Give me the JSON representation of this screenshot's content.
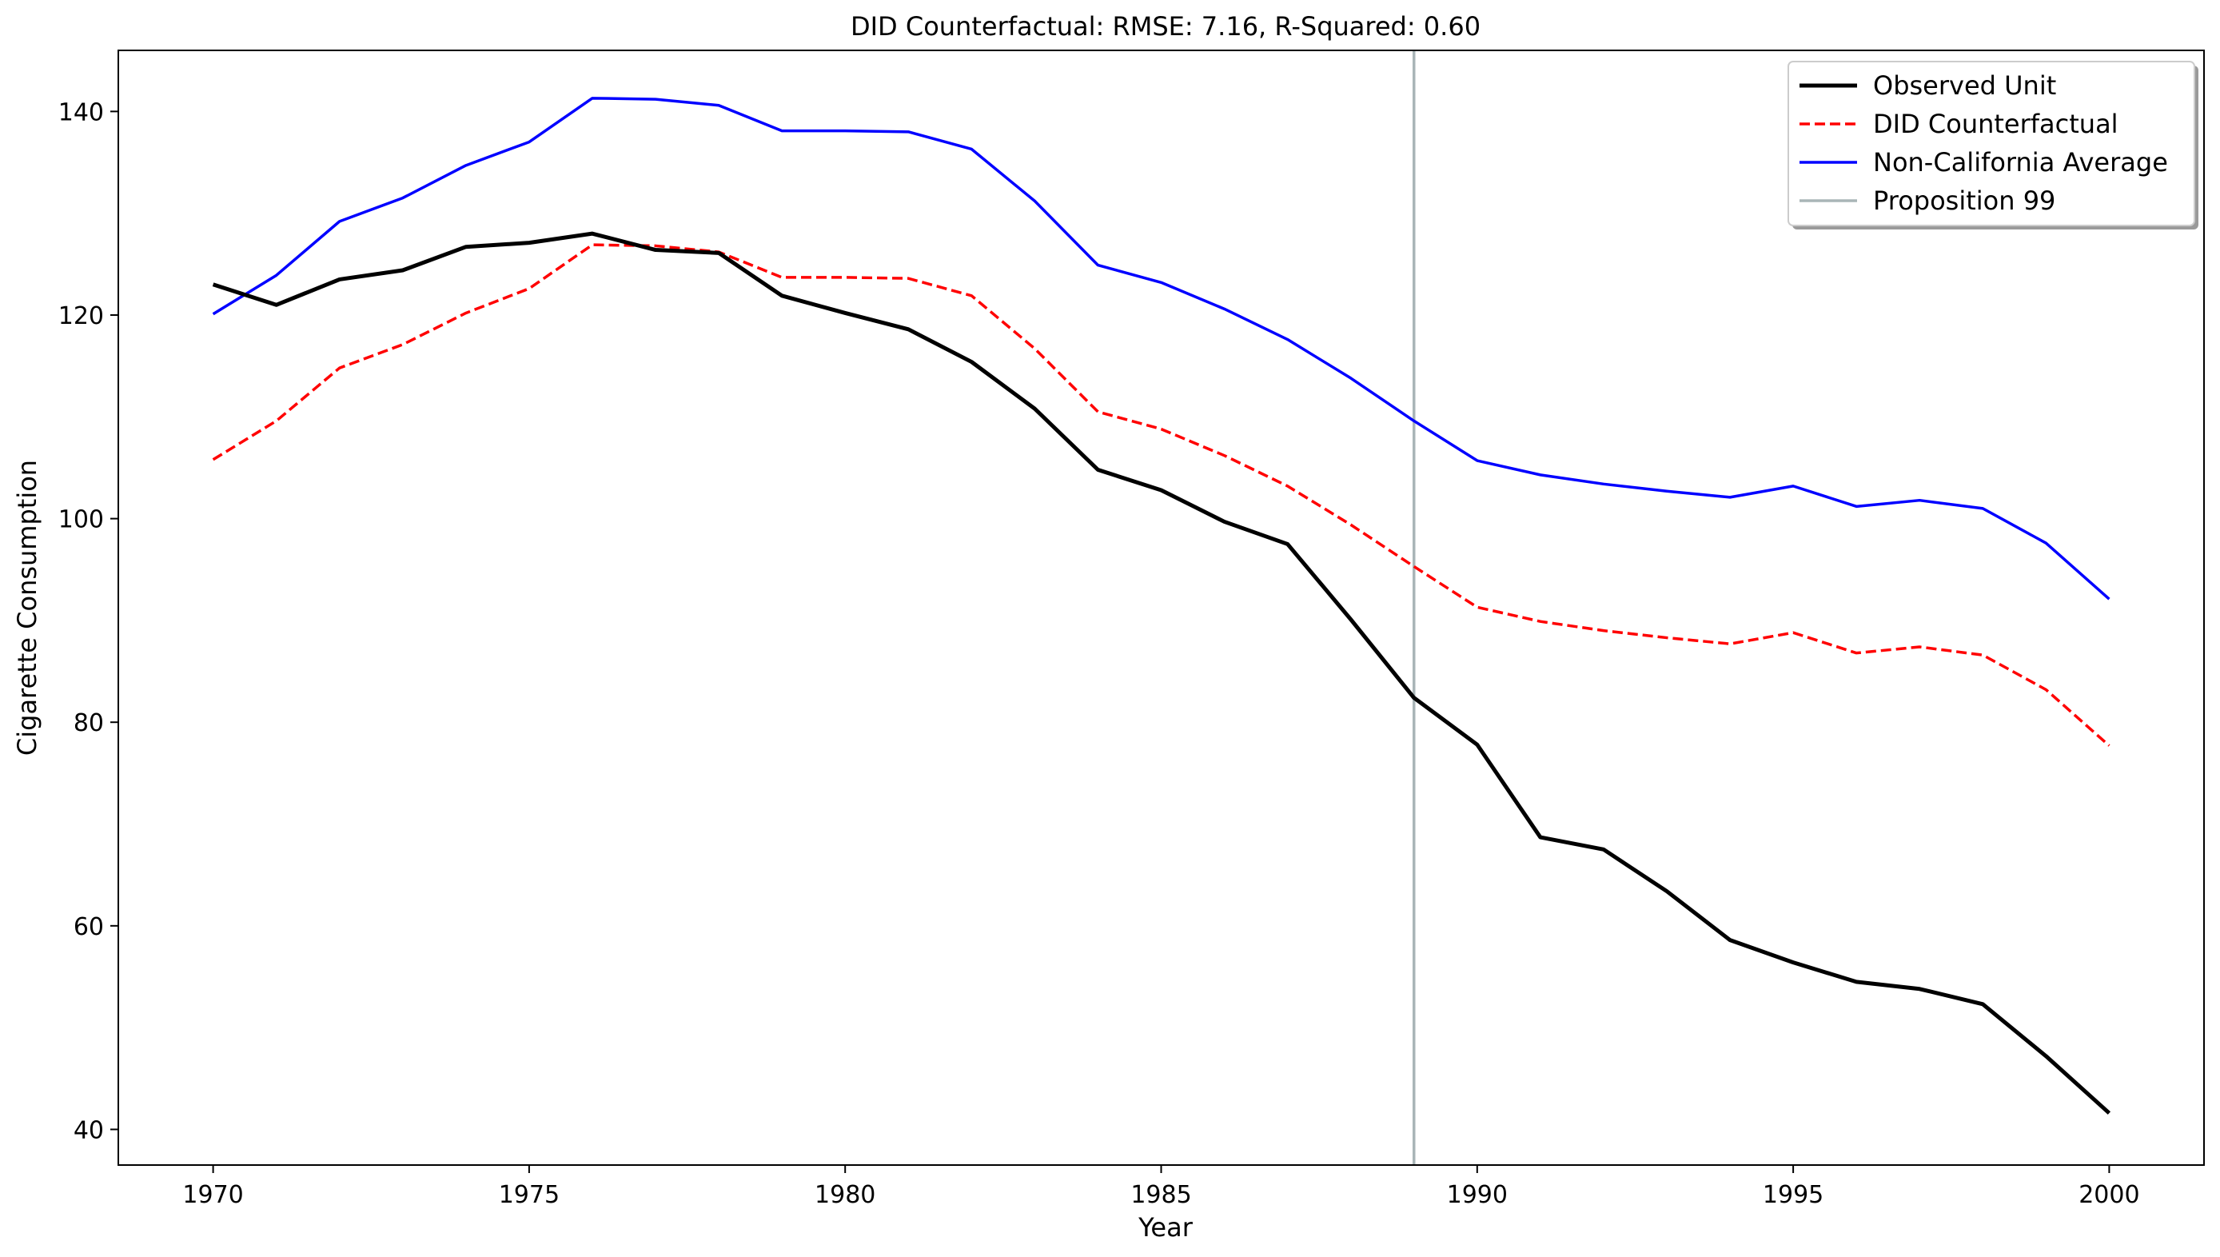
{
  "chart_data": {
    "type": "line",
    "title": "DID Counterfactual: RMSE: 7.16, R-Squared: 0.60",
    "xlabel": "Year",
    "ylabel": "Cigarette Consumption",
    "xlim": [
      1968.5,
      2001.5
    ],
    "ylim": [
      36.5,
      146.0
    ],
    "xticks": [
      1970,
      1975,
      1980,
      1985,
      1990,
      1995,
      2000
    ],
    "yticks": [
      40,
      60,
      80,
      100,
      120,
      140
    ],
    "grid": false,
    "legend_position": "top-right",
    "x": [
      1970,
      1971,
      1972,
      1973,
      1974,
      1975,
      1976,
      1977,
      1978,
      1979,
      1980,
      1981,
      1982,
      1983,
      1984,
      1985,
      1986,
      1987,
      1988,
      1989,
      1990,
      1991,
      1992,
      1993,
      1994,
      1995,
      1996,
      1997,
      1998,
      1999,
      2000
    ],
    "series": [
      {
        "name": "Observed Unit",
        "color": "#000000",
        "style": "solid",
        "width": 5,
        "values": [
          123.0,
          121.0,
          123.5,
          124.4,
          126.7,
          127.1,
          128.0,
          126.4,
          126.1,
          121.9,
          120.2,
          118.6,
          115.4,
          110.8,
          104.8,
          102.8,
          99.7,
          97.5,
          90.1,
          82.4,
          77.8,
          68.7,
          67.5,
          63.4,
          58.6,
          56.4,
          54.5,
          53.8,
          52.3,
          47.2,
          41.6
        ]
      },
      {
        "name": "DID Counterfactual",
        "color": "#ff0000",
        "style": "dashed",
        "width": 3.5,
        "values": [
          105.8,
          109.6,
          114.8,
          117.1,
          120.2,
          122.6,
          126.9,
          126.8,
          126.2,
          123.7,
          123.7,
          123.6,
          121.9,
          116.7,
          110.5,
          108.8,
          106.2,
          103.2,
          99.4,
          95.3,
          91.3,
          89.9,
          89.0,
          88.3,
          87.7,
          88.8,
          86.8,
          87.4,
          86.6,
          83.2,
          77.7
        ]
      },
      {
        "name": "Non-California Average",
        "color": "#0000ff",
        "style": "solid",
        "width": 3.5,
        "values": [
          120.1,
          123.9,
          129.2,
          131.5,
          134.7,
          137.0,
          141.3,
          141.2,
          140.6,
          138.1,
          138.1,
          138.0,
          136.3,
          131.2,
          124.9,
          123.2,
          120.6,
          117.6,
          113.8,
          109.6,
          105.7,
          104.3,
          103.4,
          102.7,
          102.1,
          103.2,
          101.2,
          101.8,
          101.0,
          97.6,
          92.1
        ]
      },
      {
        "name": "Proposition 99",
        "color": "#a9b5b7",
        "style": "vline",
        "width": 3.5,
        "x_value": 1989
      }
    ]
  }
}
